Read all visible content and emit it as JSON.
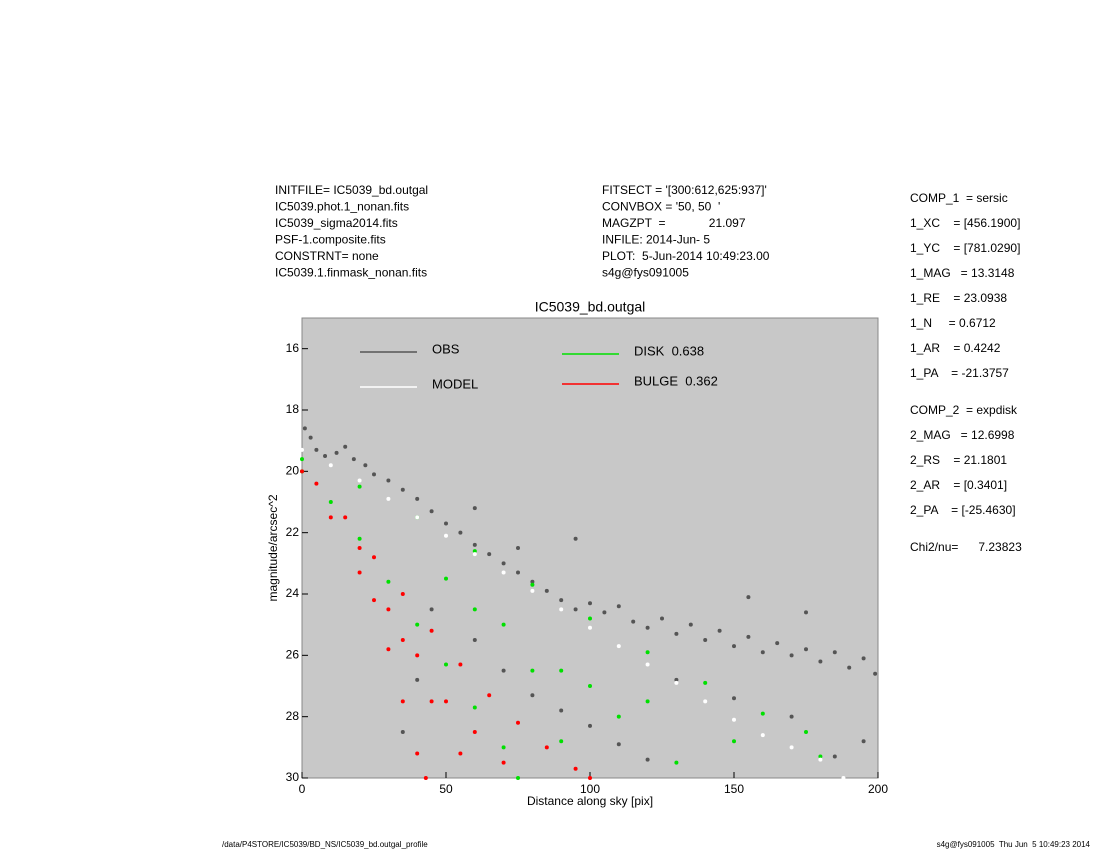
{
  "fit_info": {
    "left": [
      "INITFILE= IC5039_bd.outgal",
      "IC5039.phot.1_nonan.fits",
      "IC5039_sigma2014.fits",
      "PSF-1.composite.fits",
      "CONSTRNT= none",
      "IC5039.1.finmask_nonan.fits"
    ],
    "middle": [
      "FITSECT = '[300:612,625:937]'",
      "CONVBOX = '50, 50  '",
      "MAGZPT  =             21.097",
      "INFILE: 2014-Jun- 5",
      "PLOT:  5-Jun-2014 10:49:23.00",
      "s4g@fys091005"
    ],
    "params": [
      [
        "COMP_1  = sersic",
        "1_XC    = [456.1900]",
        "1_YC    = [781.0290]",
        "1_MAG   = 13.3148",
        "1_RE    = 23.0938",
        "1_N     = 0.6712",
        "1_AR    = 0.4242",
        "1_PA    = -21.3757"
      ],
      [
        "COMP_2  = expdisk",
        "2_MAG   = 12.6998",
        "2_RS    = 21.1801",
        "2_AR    = [0.3401]",
        "2_PA    = [-25.4630]"
      ],
      [
        "Chi2/nu=      7.23823"
      ]
    ]
  },
  "footer": {
    "left": "/data/P4STORE/IC5039/BD_NS/IC5039_bd.outgal_profile",
    "right": "s4g@fys091005  Thu Jun  5 10:49:23 2014"
  },
  "chart_data": {
    "type": "scatter",
    "title": "IC5039_bd.outgal",
    "x_label": "Distance along sky [pix]",
    "y_label": "magnitude/arcsec^2",
    "xlim": [
      0,
      200
    ],
    "xticks": [
      0,
      50,
      100,
      150,
      200
    ],
    "ylim": [
      30,
      15
    ],
    "yticks": [
      16,
      18,
      20,
      22,
      24,
      26,
      28,
      30
    ],
    "background": "#c8c8c8",
    "series": [
      {
        "name": "OBS",
        "color": "#555555",
        "x": [
          1,
          3,
          5,
          8,
          12,
          15,
          18,
          22,
          25,
          30,
          35,
          40,
          45,
          50,
          55,
          60,
          65,
          70,
          75,
          80,
          85,
          90,
          95,
          100,
          105,
          110,
          115,
          120,
          125,
          130,
          135,
          140,
          145,
          150,
          155,
          160,
          165,
          170,
          175,
          180,
          185,
          190,
          195,
          199,
          60,
          70,
          80,
          90,
          100,
          110,
          120,
          130,
          150,
          170,
          185,
          195,
          40,
          35,
          45,
          75,
          95,
          60,
          155,
          175
        ],
        "values": [
          18.6,
          18.9,
          19.3,
          19.5,
          19.4,
          19.2,
          19.6,
          19.8,
          20.1,
          20.3,
          20.6,
          20.9,
          21.3,
          21.7,
          22.0,
          22.4,
          22.7,
          23.0,
          23.3,
          23.6,
          23.9,
          24.2,
          24.5,
          24.3,
          24.6,
          24.4,
          24.9,
          25.1,
          24.8,
          25.3,
          25.0,
          25.5,
          25.2,
          25.7,
          25.4,
          25.9,
          25.6,
          26.0,
          25.8,
          26.2,
          25.9,
          26.4,
          26.1,
          26.6,
          25.5,
          26.5,
          27.3,
          27.8,
          28.3,
          28.9,
          29.4,
          26.8,
          27.4,
          28.0,
          29.3,
          28.8,
          26.8,
          28.5,
          24.5,
          22.5,
          22.2,
          21.2,
          24.1,
          24.6
        ]
      },
      {
        "name": "DISK  0.638",
        "color": "#00e000",
        "x": [
          0,
          20,
          40,
          60,
          80,
          100,
          120,
          140,
          160,
          175,
          180,
          0,
          10,
          20,
          30,
          40,
          50,
          60,
          70,
          75,
          50,
          70,
          90,
          110,
          130,
          100,
          80,
          60,
          150,
          120,
          90
        ],
        "values": [
          19.6,
          20.5,
          21.5,
          22.6,
          23.7,
          24.8,
          25.9,
          26.9,
          27.9,
          28.5,
          29.3,
          20,
          21,
          22.2,
          23.6,
          25.0,
          26.3,
          27.7,
          29.0,
          30,
          23.5,
          25,
          26.5,
          28,
          29.5,
          27,
          26.5,
          24.5,
          28.8,
          27.5,
          28.8
        ]
      },
      {
        "name": "BULGE  0.362",
        "color": "#ff0000",
        "x": [
          0,
          10,
          20,
          25,
          30,
          35,
          40,
          43,
          5,
          15,
          25,
          35,
          45,
          55,
          65,
          75,
          85,
          95,
          100,
          30,
          40,
          50,
          60,
          70,
          20,
          45,
          55,
          35
        ],
        "values": [
          20,
          21.5,
          23.3,
          24.2,
          25.8,
          27.5,
          29.2,
          30,
          20.4,
          21.5,
          22.8,
          24.0,
          25.2,
          26.3,
          27.3,
          28.2,
          29.0,
          29.7,
          30,
          24.5,
          26,
          27.5,
          28.5,
          29.5,
          22.5,
          27.5,
          29.2,
          25.5
        ]
      },
      {
        "name": "MODEL",
        "color": "#ffffff",
        "x": [
          0,
          10,
          20,
          30,
          40,
          50,
          60,
          70,
          80,
          90,
          100,
          110,
          120,
          130,
          140,
          150,
          160,
          170,
          180,
          188
        ],
        "values": [
          19.3,
          19.8,
          20.3,
          20.9,
          21.5,
          22.1,
          22.7,
          23.3,
          23.9,
          24.5,
          25.1,
          25.7,
          26.3,
          26.9,
          27.5,
          28.1,
          28.6,
          29.0,
          29.4,
          30.0
        ]
      }
    ]
  }
}
